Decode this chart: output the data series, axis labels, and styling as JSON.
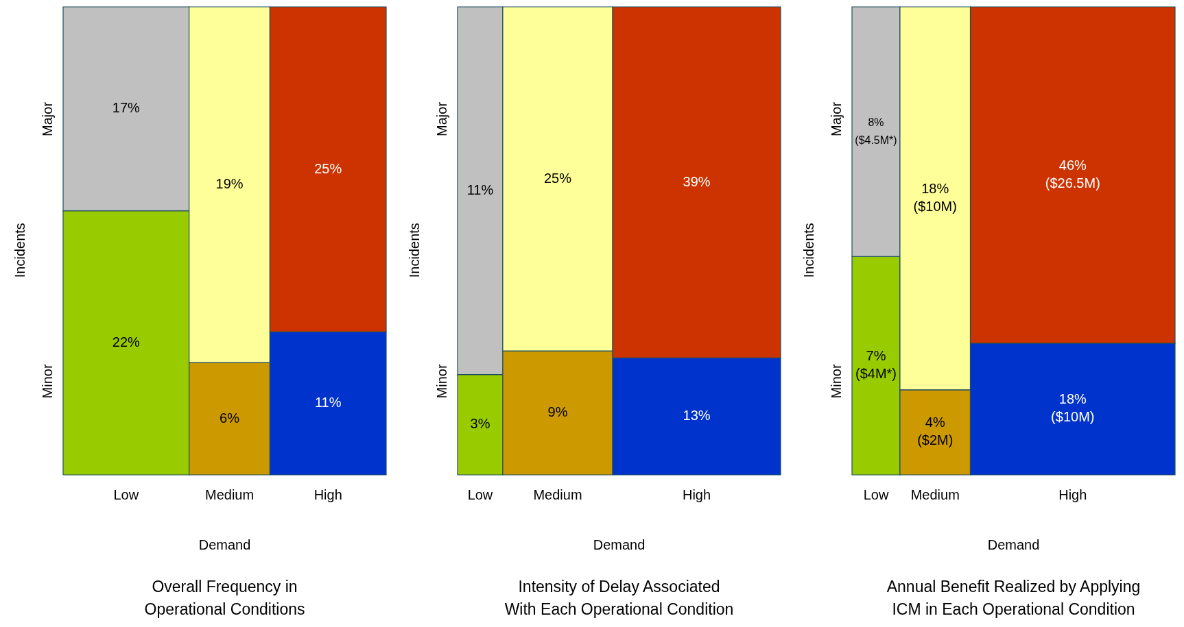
{
  "chart_data": [
    {
      "type": "other",
      "title": "Overall Frequency in Operational Conditions",
      "xlabel": "Demand",
      "ylabel": "Incidents",
      "categories": [
        "Low",
        "Medium",
        "High"
      ],
      "series": [
        {
          "name": "Minor",
          "colors": [
            "#99cc00",
            "#cc9900",
            "#0033cc"
          ],
          "values": [
            22,
            6,
            11
          ],
          "value_labels": [
            "22%",
            "6%",
            "11%"
          ]
        },
        {
          "name": "Major",
          "colors": [
            "#c0c0c0",
            "#ffff99",
            "#cc3300"
          ],
          "values": [
            17,
            19,
            25
          ],
          "value_labels": [
            "17%",
            "19%",
            "25%"
          ]
        }
      ]
    },
    {
      "type": "other",
      "title": "Intensity of Delay Associated With Each Operational Condition",
      "xlabel": "Demand",
      "ylabel": "Incidents",
      "categories": [
        "Low",
        "Medium",
        "High"
      ],
      "series": [
        {
          "name": "Minor",
          "colors": [
            "#99cc00",
            "#cc9900",
            "#0033cc"
          ],
          "values": [
            3,
            9,
            13
          ],
          "value_labels": [
            "3%",
            "9%",
            "13%"
          ]
        },
        {
          "name": "Major",
          "colors": [
            "#c0c0c0",
            "#ffff99",
            "#cc3300"
          ],
          "values": [
            11,
            25,
            39
          ],
          "value_labels": [
            "11%",
            "25%",
            "39%"
          ]
        }
      ]
    },
    {
      "type": "other",
      "title": "Annual Benefit Realized by Applying ICM in Each Operational Condition",
      "xlabel": "Demand",
      "ylabel": "Incidents",
      "categories": [
        "Low",
        "Medium",
        "High"
      ],
      "series": [
        {
          "name": "Minor",
          "colors": [
            "#99cc00",
            "#cc9900",
            "#0033cc"
          ],
          "values": [
            7,
            4,
            18
          ],
          "value_labels": [
            "7% ($4M*)",
            "4% ($2M)",
            "18% ($10M)"
          ]
        },
        {
          "name": "Major",
          "colors": [
            "#c0c0c0",
            "#ffff99",
            "#cc3300"
          ],
          "values": [
            8,
            18,
            46
          ],
          "value_labels": [
            "8% ($4.5M*)",
            "18% ($10M)",
            "46% ($26.5M)"
          ]
        }
      ]
    }
  ]
}
